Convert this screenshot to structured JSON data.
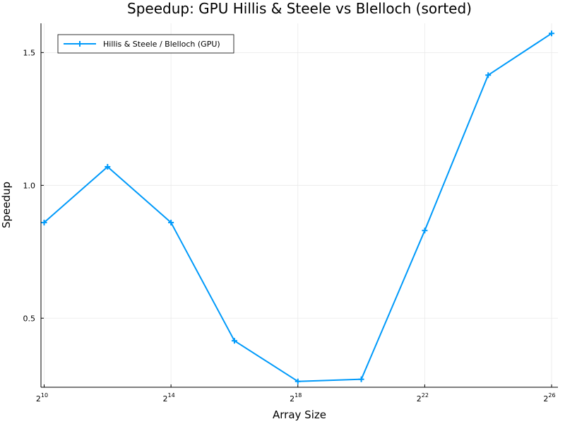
{
  "chart_data": {
    "type": "line",
    "title": "Speedup: GPU Hillis & Steele vs Blelloch (sorted)",
    "xlabel": "Array Size",
    "ylabel": "Speedup",
    "x_scale": "log2",
    "x_tick_exponents": [
      10,
      14,
      18,
      22,
      26
    ],
    "x_tick_base": "2",
    "y_ticks": [
      0.5,
      1.0,
      1.5
    ],
    "y_tick_labels": [
      "0.5",
      "1.0",
      "1.5"
    ],
    "xlim_exponent": [
      9.9,
      26.2
    ],
    "ylim": [
      0.24,
      1.61
    ],
    "grid": true,
    "legend_position": "top-left",
    "series": [
      {
        "name": "Hillis & Steele / Blelloch (GPU)",
        "color": "#009AFA",
        "marker": "plus",
        "x_exponent": [
          10,
          12,
          14,
          16,
          18,
          20,
          22,
          24,
          26
        ],
        "values": [
          0.86,
          1.07,
          0.86,
          0.415,
          0.262,
          0.27,
          0.83,
          1.415,
          1.572
        ]
      }
    ]
  }
}
